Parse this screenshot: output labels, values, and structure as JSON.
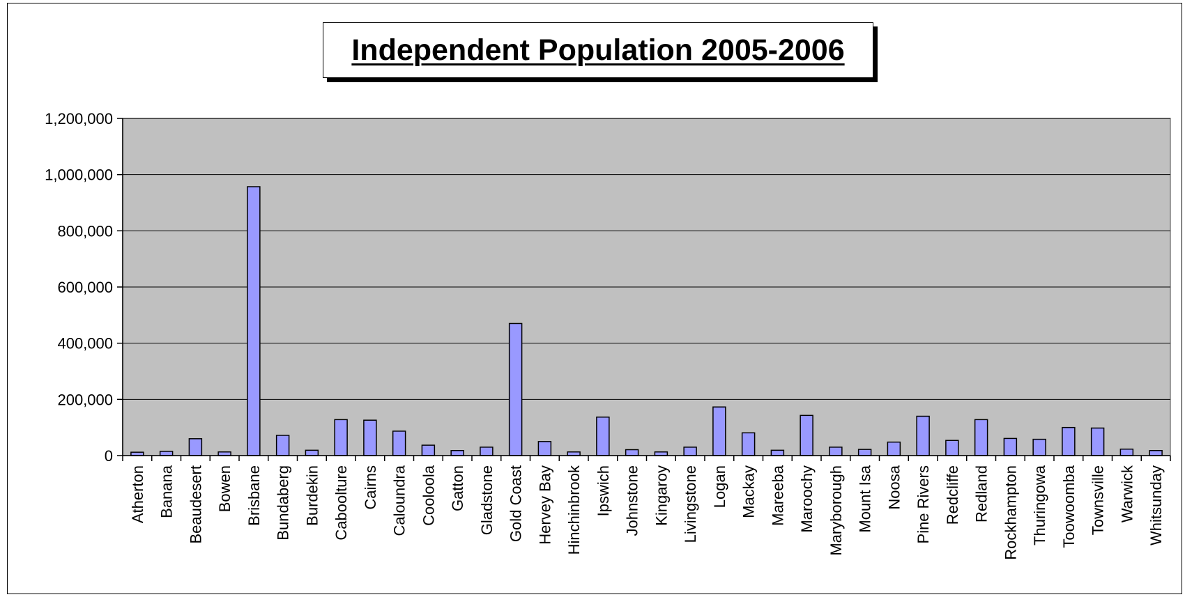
{
  "chart_data": {
    "type": "bar",
    "title": "Independent Population 2005-2006",
    "xlabel": "",
    "ylabel": "",
    "ylim": [
      0,
      1200000
    ],
    "yticks": [
      0,
      200000,
      400000,
      600000,
      800000,
      1000000,
      1200000
    ],
    "ytick_labels": [
      "0",
      "200,000",
      "400,000",
      "600,000",
      "800,000",
      "1,000,000",
      "1,200,000"
    ],
    "grid": true,
    "legend": "none",
    "colors": {
      "bar_fill": "#9999ff",
      "bar_stroke": "#000000",
      "plot_background": "#c0c0c0"
    },
    "categories": [
      "Atherton",
      "Banana",
      "Beaudesert",
      "Bowen",
      "Brisbane",
      "Bundaberg",
      "Burdekin",
      "Caboolture",
      "Cairns",
      "Caloundra",
      "Cooloola",
      "Gatton",
      "Gladstone",
      "Gold Coast",
      "Hervey Bay",
      "Hinchinbrook",
      "Ipswich",
      "Johnstone",
      "Kingaroy",
      "Livingstone",
      "Logan",
      "Mackay",
      "Mareeba",
      "Maroochy",
      "Maryborough",
      "Mount Isa",
      "Noosa",
      "Pine Rivers",
      "Redcliffe",
      "Redland",
      "Rockhampton",
      "Thuringowa",
      "Toowoomba",
      "Townsville",
      "Warwick",
      "Whitsunday"
    ],
    "values": [
      12000,
      15000,
      60000,
      13000,
      957000,
      72000,
      19000,
      128000,
      126000,
      87000,
      37000,
      18000,
      30000,
      470000,
      50000,
      13000,
      137000,
      21000,
      13000,
      30000,
      173000,
      81000,
      19000,
      143000,
      30000,
      22000,
      48000,
      140000,
      54000,
      128000,
      61000,
      58000,
      100000,
      98000,
      23000,
      18000
    ]
  }
}
